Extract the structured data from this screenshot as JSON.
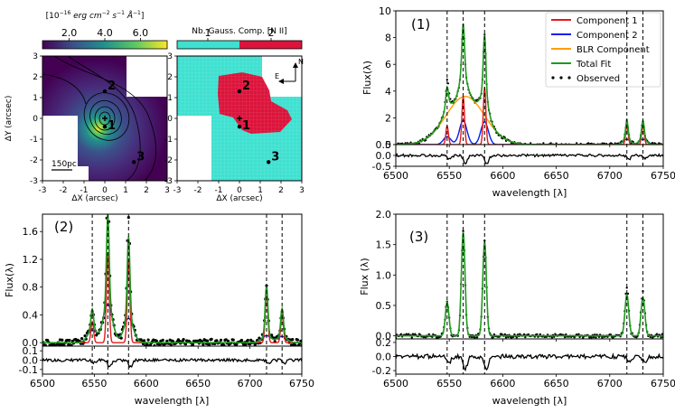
{
  "colors": {
    "component1": "#e41a1c",
    "component2": "#0022ee",
    "blr": "#ff9d00",
    "total": "#1f9a1f",
    "observed": "#000000",
    "residual": "#000000",
    "ncomp1": "#40e0d0",
    "ncomp2": "#dc143c"
  },
  "maps": {
    "flux_colorbar": {
      "label": "[10^-16 erg cm^-2 s^-1 Å^-1]",
      "label_prefix": "[10",
      "label_exp": "−16",
      "label_mid": " erg cm",
      "label_exp2": "−2",
      "label_mid2": " s",
      "label_exp3": "−1",
      "label_tail": " Å",
      "label_exp4": "−1",
      "label_end": "]",
      "ticks": [
        "2.0",
        "4.0",
        "6.0"
      ],
      "tick_values": [
        2.0,
        4.0,
        6.0
      ],
      "range": [
        0.5,
        7.5
      ]
    },
    "ncomp_colorbar": {
      "label": "Nb. Gauss. Comp. [N II]",
      "ticks": [
        "1",
        "2"
      ]
    },
    "x_label": "ΔX (arcsec)",
    "y_label": "ΔY (arcsec)",
    "x_ticks": [
      "-3",
      "-2",
      "-1",
      "0",
      "1",
      "2",
      "3"
    ],
    "y_ticks": [
      "-3",
      "-2",
      "-1",
      "0",
      "1",
      "2",
      "3"
    ],
    "scale_bar": "150pc",
    "compass": {
      "north": "N",
      "east": "E"
    },
    "points": [
      {
        "label": "1",
        "x": 0.0,
        "y": -0.4
      },
      {
        "label": "2",
        "x": 0.0,
        "y": 1.3
      },
      {
        "label": "3",
        "x": 1.4,
        "y": -2.1
      }
    ]
  },
  "chart_data": [
    {
      "panel": "(1)",
      "type": "line",
      "title": "(1)",
      "xlabel": "wavelength [λ]",
      "ylabel": "Flux(λ)",
      "xlim": [
        6500,
        6750
      ],
      "ylim": [
        0,
        10
      ],
      "yticks": [
        "0",
        "2",
        "4",
        "6",
        "8",
        "10"
      ],
      "xticks": [
        "6500",
        "6550",
        "6600",
        "6650",
        "6700",
        "6750"
      ],
      "vlines": [
        6548,
        6563,
        6583,
        6716,
        6731
      ],
      "legend": [
        "Component 1",
        "Component 2",
        "BLR Component",
        "Total Fit",
        "Observed"
      ],
      "components": {
        "component1": [
          [
            6548,
            1.4,
            1.2
          ],
          [
            6563,
            3.6,
            1.2
          ],
          [
            6583,
            4.3,
            1.2
          ],
          [
            6716,
            1.4,
            1.2
          ],
          [
            6731,
            1.4,
            1.2
          ]
        ],
        "component2": [
          [
            6548,
            0.6,
            3.5
          ],
          [
            6563,
            1.8,
            3.5
          ],
          [
            6583,
            1.7,
            3.5
          ],
          [
            6716,
            0.4,
            3.5
          ],
          [
            6731,
            0.4,
            3.5
          ]
        ],
        "blr": [
          [
            6565,
            3.6,
            18
          ]
        ]
      },
      "residual": {
        "ylim": [
          -0.5,
          0.5
        ],
        "yticks": [
          "0.5",
          "0.0",
          "-0.5"
        ]
      }
    },
    {
      "panel": "(2)",
      "type": "line",
      "title": "(2)",
      "xlabel": "wavelength [λ]",
      "ylabel": "Flux(λ)",
      "xlim": [
        6500,
        6750
      ],
      "ylim": [
        -0.05,
        1.85
      ],
      "yticks": [
        "0.0",
        "0.4",
        "0.8",
        "1.2",
        "1.6"
      ],
      "ytick_values": [
        0.0,
        0.4,
        0.8,
        1.2,
        1.6
      ],
      "xticks": [
        "6500",
        "6550",
        "6600",
        "6650",
        "6700",
        "6750"
      ],
      "vlines": [
        6548,
        6563,
        6583,
        6716,
        6731
      ],
      "components": {
        "component1": [
          [
            6548,
            0.3,
            1.3
          ],
          [
            6563,
            1.3,
            1.3
          ],
          [
            6583,
            1.18,
            1.3
          ],
          [
            6716,
            0.72,
            1.3
          ],
          [
            6731,
            0.4,
            1.3
          ]
        ],
        "component2": [
          [
            6548,
            0.18,
            4.5
          ],
          [
            6563,
            0.55,
            4.5
          ],
          [
            6583,
            0.35,
            4.5
          ],
          [
            6716,
            0.1,
            4.5
          ],
          [
            6731,
            0.09,
            4.5
          ]
        ]
      },
      "residual": {
        "ylim": [
          -0.15,
          0.15
        ],
        "yticks": [
          "0.1",
          "0.0",
          "-0.1"
        ]
      }
    },
    {
      "panel": "(3)",
      "type": "line",
      "title": "(3)",
      "xlabel": "wavelength [λ]",
      "ylabel": "Flux (λ)",
      "xlim": [
        6500,
        6750
      ],
      "ylim": [
        -0.05,
        2.0
      ],
      "yticks": [
        "0.0",
        "0.5",
        "1.0",
        "1.5",
        "2.0"
      ],
      "ytick_values": [
        0.0,
        0.5,
        1.0,
        1.5,
        2.0
      ],
      "xticks": [
        "6500",
        "6550",
        "6600",
        "6650",
        "6700",
        "6750"
      ],
      "vlines": [
        6548,
        6563,
        6583,
        6716,
        6731
      ],
      "components": {
        "total": [
          [
            6548,
            0.55,
            1.7
          ],
          [
            6563,
            1.7,
            1.7
          ],
          [
            6583,
            1.55,
            1.7
          ],
          [
            6716,
            0.68,
            1.8
          ],
          [
            6731,
            0.63,
            1.8
          ]
        ]
      },
      "residual": {
        "ylim": [
          -0.25,
          0.25
        ],
        "yticks": [
          "0.2",
          "0.0",
          "-0.2"
        ]
      }
    }
  ]
}
